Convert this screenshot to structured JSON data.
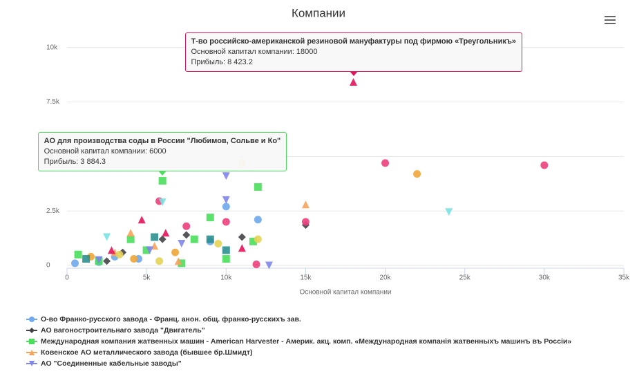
{
  "chart_data": {
    "type": "scatter",
    "title": "Компании",
    "x_label": "Основной капитал компании",
    "xlim": [
      0,
      35000
    ],
    "xticks": [
      {
        "value": 0,
        "label": "0"
      },
      {
        "value": 5000,
        "label": "5k"
      },
      {
        "value": 10000,
        "label": "10k"
      },
      {
        "value": 15000,
        "label": "15k"
      },
      {
        "value": 20000,
        "label": "20k"
      },
      {
        "value": 25000,
        "label": "25k"
      },
      {
        "value": 30000,
        "label": "30k"
      },
      {
        "value": 35000,
        "label": "35k"
      }
    ],
    "ylim": [
      0,
      10500
    ],
    "yticks": [
      {
        "value": 0,
        "label": "0"
      },
      {
        "value": 2500,
        "label": "2.5k"
      },
      {
        "value": 5000,
        "label": "5k"
      },
      {
        "value": 7500,
        "label": "7.5k"
      },
      {
        "value": 10000,
        "label": "10k"
      }
    ],
    "grid": true,
    "legend": "bottom",
    "series": [
      {
        "name": "О-во Франко-русского завода - Франц. анон. общ. франко-русскихъ зав.",
        "color": "#6fa8ec",
        "marker": "circle",
        "x": [
          10000,
          12000,
          500,
          2000,
          4500,
          9000,
          3000
        ],
        "values": [
          2700,
          2100,
          100,
          150,
          300,
          1100,
          400
        ]
      },
      {
        "name": "АО вагоностроительнаго завода \"Двигатель\"",
        "color": "#434348",
        "marker": "diamond",
        "x": [
          15000,
          11000,
          7500,
          6000,
          3500,
          2500
        ],
        "values": [
          1850,
          1300,
          1400,
          1200,
          600,
          200
        ]
      },
      {
        "name": "Международная компания жатвенных машин - American Harvester - Америк. акц. комп. «Международная компанія жатвенныхъ машинъ въ Россіи»",
        "color": "#4ade5c",
        "marker": "square",
        "x": [
          6000,
          12000,
          9000,
          4000,
          8000,
          10000,
          11700,
          700,
          5000,
          2000,
          7200
        ],
        "values": [
          3884.3,
          3600,
          2200,
          1200,
          1200,
          300,
          1100,
          500,
          700,
          200,
          100
        ]
      },
      {
        "name": "Ковенское АО металлического завода (бывшее бр.Шмидт)",
        "color": "#f7a35c",
        "marker": "triangle",
        "x": [
          15000,
          4000,
          3000,
          7000,
          5500
        ],
        "values": [
          2800,
          1500,
          600,
          200,
          900
        ]
      },
      {
        "name": "АО \"Соединенные кабельные заводы\"",
        "color": "#8085e9",
        "marker": "triangle-down",
        "x": [
          10000,
          10000,
          12700,
          7200,
          2000,
          5200
        ],
        "values": [
          4100,
          3000,
          0,
          1000,
          250,
          700
        ]
      },
      {
        "color": "#ec3f7c",
        "marker": "circle",
        "x": [
          20000,
          30000,
          11900,
          5800,
          10000,
          7500,
          15000
        ],
        "values": [
          4700,
          4600,
          50,
          2950,
          2000,
          1800,
          2000
        ]
      },
      {
        "color": "#e4145a",
        "marker": "triangle",
        "x": [
          18000,
          4700,
          11000,
          6200,
          2800
        ],
        "values": [
          8423.2,
          2100,
          800,
          1500,
          700
        ]
      },
      {
        "color": "#f0a637",
        "marker": "circle",
        "x": [
          22000,
          4200,
          6800,
          1500
        ],
        "values": [
          4200,
          300,
          600,
          400
        ]
      },
      {
        "color": "#7be2e2",
        "marker": "triangle-down",
        "x": [
          24000,
          6000,
          2500
        ],
        "values": [
          2450,
          2900,
          1300
        ]
      },
      {
        "color": "#e4d354",
        "marker": "circle",
        "x": [
          11000,
          3300,
          5800,
          9500,
          12000
        ],
        "values": [
          4700,
          500,
          200,
          1000,
          1200
        ]
      },
      {
        "color": "#2b908f",
        "marker": "square",
        "x": [
          9000,
          1200,
          5500,
          10000
        ],
        "values": [
          1200,
          300,
          1300,
          700
        ]
      }
    ],
    "tooltips": [
      {
        "series": 6,
        "point": 0,
        "color": "#e4145a",
        "title": "Т-во российско-американской резиновой мануфактуры под фирмою «Треугольникъ»",
        "lines": [
          "Основной капитал компании: 18000",
          "Прибыль: 8 423.2"
        ]
      },
      {
        "series": 2,
        "point": 0,
        "color": "#4ade5c",
        "title": "АО для производства соды в России \"Любимов, Сольве и Ко\"",
        "lines": [
          "Основной капитал компании: 6000",
          "Прибыль: 3 884.3"
        ]
      }
    ]
  }
}
